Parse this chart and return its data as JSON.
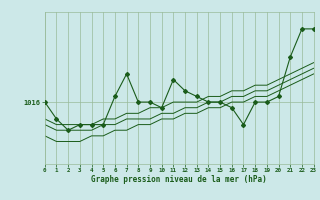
{
  "background_color": "#cce8e8",
  "plot_bg_color": "#cce8e8",
  "grid_color": "#99bb99",
  "line_color": "#1a5c1a",
  "xlabel": "Graphe pression niveau de la mer (hPa)",
  "ylabel_tick": "1016",
  "xlim": [
    0,
    23
  ],
  "ylim": [
    1005,
    1032
  ],
  "ytick_val": 1016,
  "x": [
    0,
    1,
    2,
    3,
    4,
    5,
    6,
    7,
    8,
    9,
    10,
    11,
    12,
    13,
    14,
    15,
    16,
    17,
    18,
    19,
    20,
    21,
    22,
    23
  ],
  "y_main": [
    1016,
    1013,
    1011,
    1012,
    1012,
    1012,
    1017,
    1021,
    1016,
    1016,
    1015,
    1020,
    1018,
    1017,
    1016,
    1016,
    1015,
    1012,
    1016,
    1016,
    1017,
    1024,
    1029,
    1029
  ],
  "y_line2": [
    1013,
    1012,
    1012,
    1012,
    1012,
    1013,
    1013,
    1014,
    1014,
    1015,
    1015,
    1016,
    1016,
    1016,
    1017,
    1017,
    1018,
    1018,
    1019,
    1019,
    1020,
    1021,
    1022,
    1023
  ],
  "y_line3": [
    1012,
    1011,
    1011,
    1011,
    1011,
    1012,
    1012,
    1013,
    1013,
    1013,
    1014,
    1014,
    1015,
    1015,
    1016,
    1016,
    1017,
    1017,
    1018,
    1018,
    1019,
    1020,
    1021,
    1022
  ],
  "y_line4": [
    1010,
    1009,
    1009,
    1009,
    1010,
    1010,
    1011,
    1011,
    1012,
    1012,
    1013,
    1013,
    1014,
    1014,
    1015,
    1015,
    1016,
    1016,
    1017,
    1017,
    1018,
    1019,
    1020,
    1021
  ]
}
